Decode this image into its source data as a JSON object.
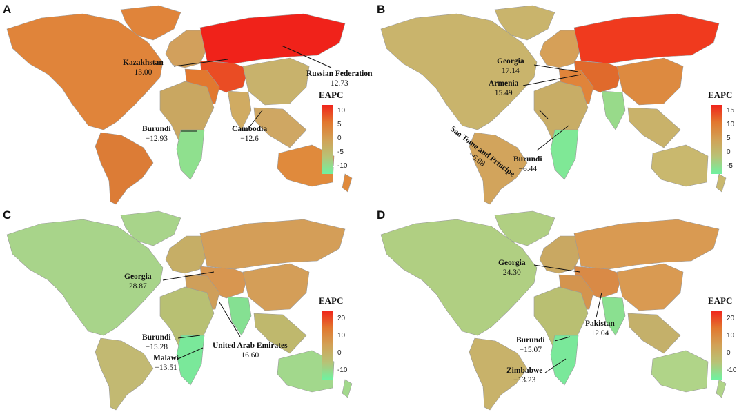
{
  "panels": [
    {
      "label": "A",
      "legend": {
        "title": "EAPC",
        "ticks": [
          "10",
          "5",
          "0",
          "-5",
          "-10"
        ]
      },
      "annotations": [
        {
          "name": "Kazakhstan",
          "value": "13.00"
        },
        {
          "name": "Russian Federation",
          "value": "12.73"
        },
        {
          "name": "Burundi",
          "value": "−12.93"
        },
        {
          "name": "Cambodia",
          "value": "−12.6"
        }
      ],
      "colors": {
        "namerica": "#e0843a",
        "samerica": "#dc7c36",
        "europe": "#d2a05c",
        "russia": "#f0221a",
        "centralasia": "#ea4c24",
        "china": "#c8b26c",
        "mideast": "#e2782f",
        "africa": "#c9a761",
        "southafrica": "#8fe08e",
        "india": "#d0ab62",
        "seasia": "#cfa763",
        "australia": "#e08a3c",
        "greenland": "#e0843a"
      }
    },
    {
      "label": "B",
      "legend": {
        "title": "EAPC",
        "ticks": [
          "15",
          "10",
          "5",
          "0",
          "-5"
        ]
      },
      "annotations": [
        {
          "name": "Georgia",
          "value": "17.14"
        },
        {
          "name": "Armenia",
          "value": "15.49"
        },
        {
          "name": "Sao Tome and Principe",
          "value": "−6.98"
        },
        {
          "name": "Burundi",
          "value": "−6.44"
        }
      ],
      "colors": {
        "namerica": "#c9b46c",
        "samerica": "#d2a45c",
        "europe": "#d6a058",
        "russia": "#f03a1e",
        "centralasia": "#e06a2c",
        "china": "#dd8a40",
        "mideast": "#e0843a",
        "africa": "#c8ad66",
        "southafrica": "#7fe896",
        "india": "#98da8a",
        "seasia": "#c9b26a",
        "australia": "#c9b86e",
        "greenland": "#c9b46c"
      }
    },
    {
      "label": "C",
      "legend": {
        "title": "EAPC",
        "ticks": [
          "20",
          "10",
          "0",
          "-10"
        ]
      },
      "annotations": [
        {
          "name": "Georgia",
          "value": "28.87"
        },
        {
          "name": "Burundi",
          "value": "−15.28"
        },
        {
          "name": "Malawi",
          "value": "−13.51"
        },
        {
          "name": "United Arab Emirates",
          "value": "16.60"
        }
      ],
      "colors": {
        "namerica": "#a8d48a",
        "samerica": "#c2b972",
        "europe": "#c6ae66",
        "russia": "#d49e58",
        "centralasia": "#d89650",
        "china": "#d49e58",
        "mideast": "#cf9f5a",
        "africa": "#b8c073",
        "southafrica": "#7ae89a",
        "india": "#85e092",
        "seasia": "#bfb86d",
        "australia": "#a2d88c",
        "greenland": "#a8d48a"
      }
    },
    {
      "label": "D",
      "legend": {
        "title": "EAPC",
        "ticks": [
          "20",
          "10",
          "0",
          "-10"
        ]
      },
      "annotations": [
        {
          "name": "Georgia",
          "value": "24.30"
        },
        {
          "name": "Pakistan",
          "value": "12.04"
        },
        {
          "name": "Burundi",
          "value": "−15.07"
        },
        {
          "name": "Zimbabwe",
          "value": "−13.23"
        }
      ],
      "colors": {
        "namerica": "#b0cf82",
        "samerica": "#c8b26a",
        "europe": "#c9a862",
        "russia": "#d99a52",
        "centralasia": "#d98a46",
        "china": "#d99a52",
        "mideast": "#d4944e",
        "africa": "#b9bf72",
        "southafrica": "#7ae89a",
        "india": "#8ae090",
        "seasia": "#c4b06a",
        "australia": "#b0d488",
        "greenland": "#b0cf82"
      }
    }
  ]
}
